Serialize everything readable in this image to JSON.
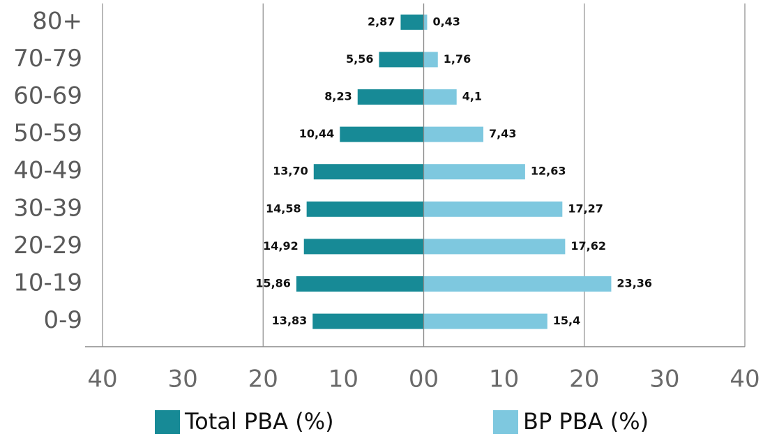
{
  "chart_data": {
    "type": "pyramid",
    "categories": [
      "80+",
      "70-79",
      "60-69",
      "50-59",
      "40-49",
      "30-39",
      "20-29",
      "10-19",
      "0-9"
    ],
    "series": [
      {
        "name": "Total PBA (%)",
        "color": "#178a96",
        "side": "left",
        "values": [
          2.87,
          5.56,
          8.23,
          10.44,
          13.7,
          14.58,
          14.92,
          15.86,
          13.83
        ],
        "value_labels": [
          "2,87",
          "5,56",
          "8,23",
          "10,44",
          "13,70",
          "14,58",
          "14,92",
          "15,86",
          "13,83"
        ]
      },
      {
        "name": "BP PBA (%)",
        "color": "#7ec8df",
        "side": "right",
        "values": [
          0.43,
          1.76,
          4.1,
          7.43,
          12.63,
          17.27,
          17.62,
          23.36,
          15.4
        ],
        "value_labels": [
          "0,43",
          "1,76",
          "4,1",
          "7,43",
          "12,63",
          "17,27",
          "17,62",
          "23,36",
          "15,4"
        ]
      }
    ],
    "xlim": [
      -40,
      40
    ],
    "xticks": [
      {
        "value": -40,
        "label": "40"
      },
      {
        "value": -30,
        "label": "30"
      },
      {
        "value": -20,
        "label": "20"
      },
      {
        "value": -10,
        "label": "10"
      },
      {
        "value": 0,
        "label": "00"
      },
      10,
      20,
      30,
      40
    ],
    "grid": true,
    "legend": "bottom"
  }
}
